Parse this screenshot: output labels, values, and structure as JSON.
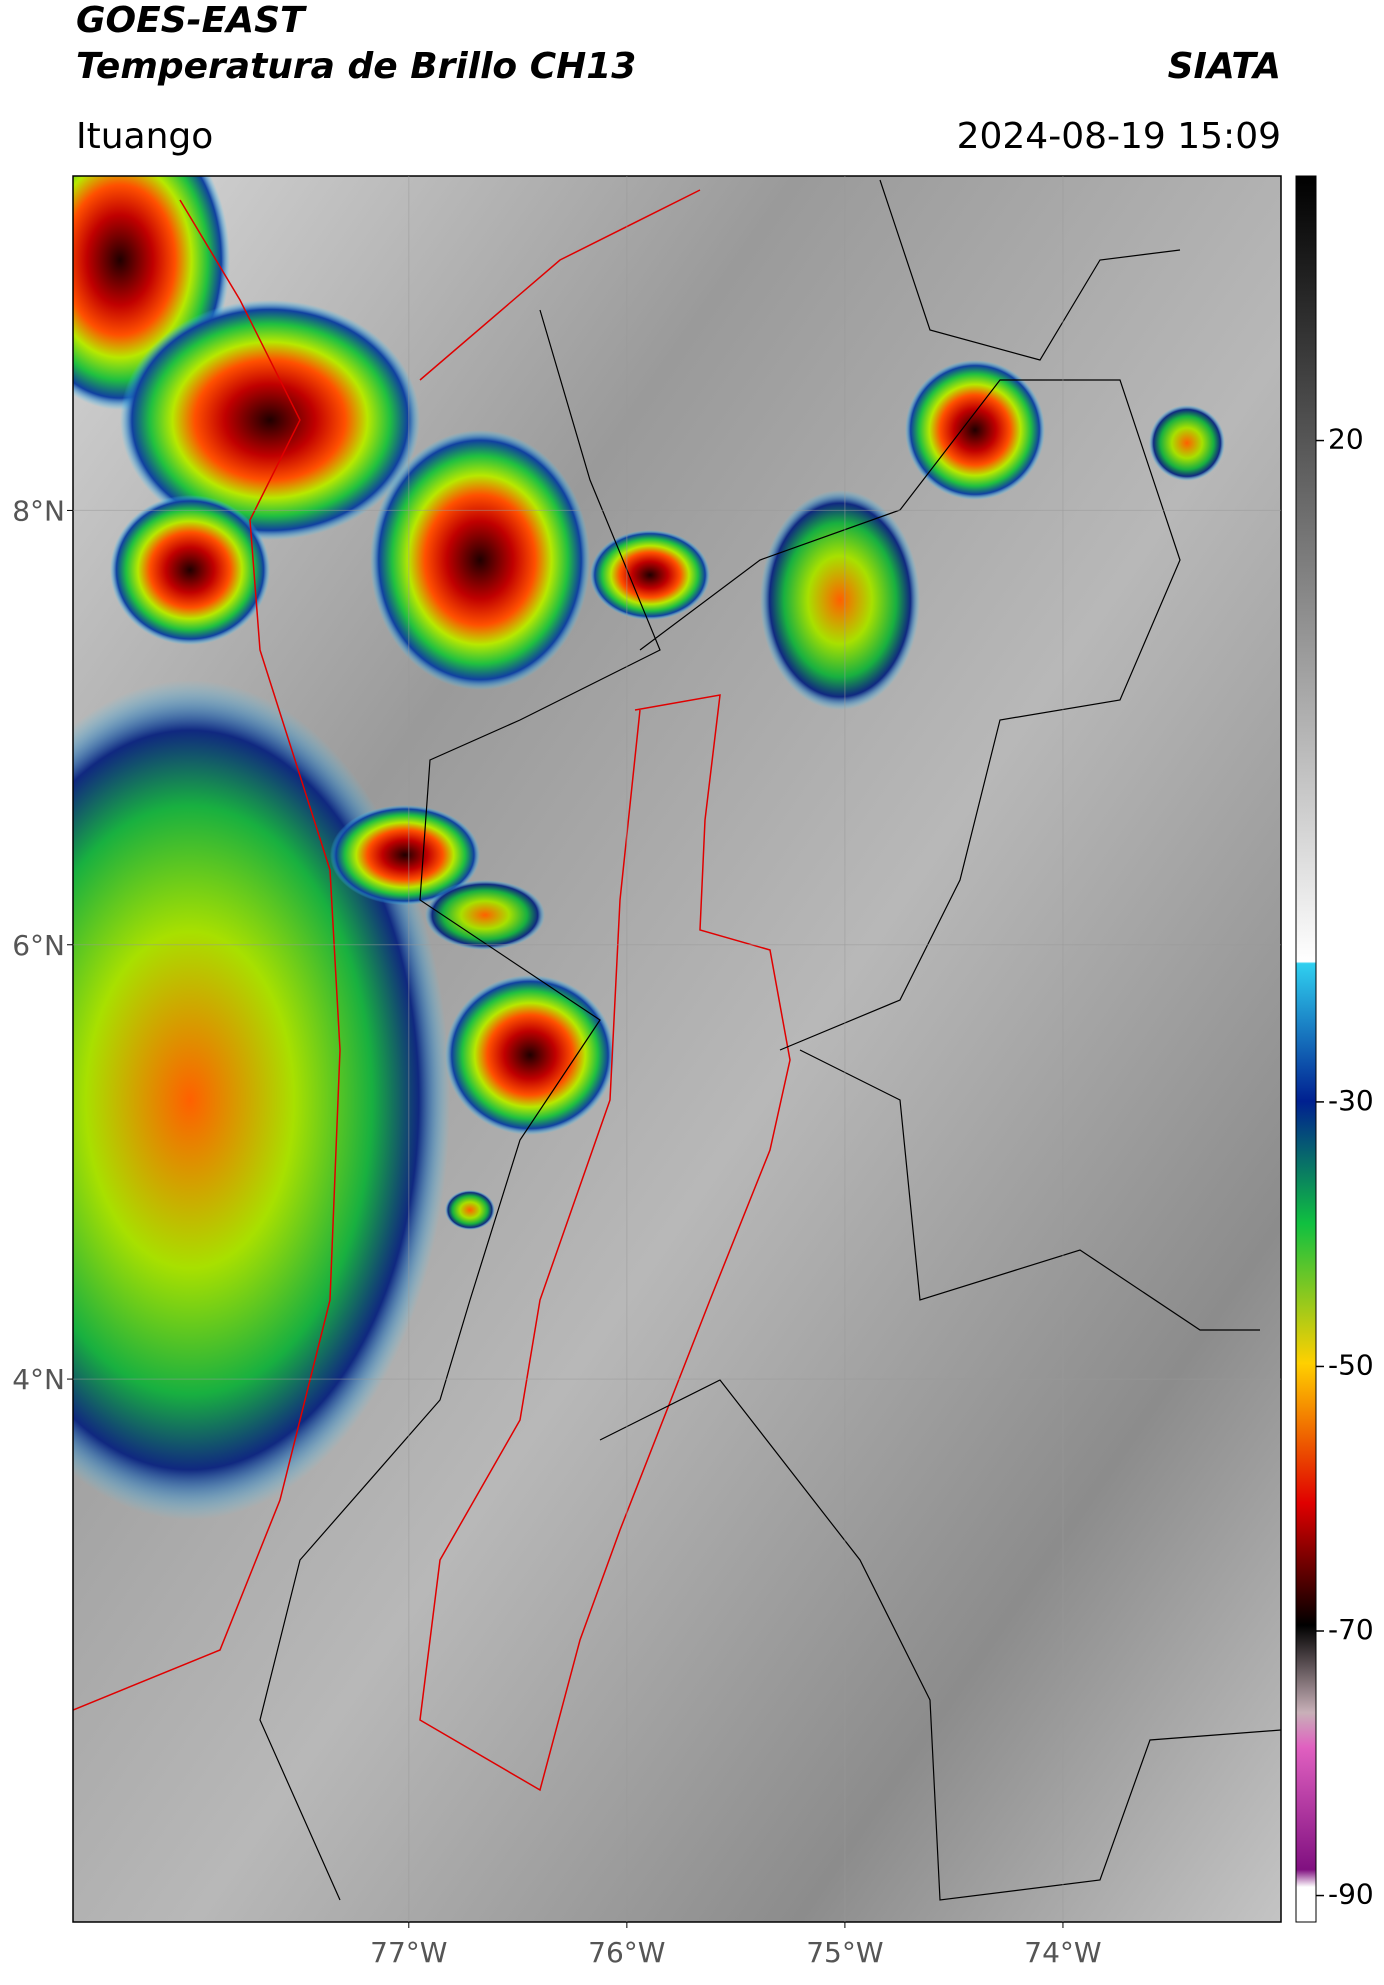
{
  "header": {
    "title": "GOES-EAST",
    "subtitle": "Temperatura de Brillo CH13",
    "source": "SIATA",
    "location": "Ituango",
    "datetime": "2024-08-19 15:09"
  },
  "map": {
    "lonlim": [
      -78.54,
      -73.0
    ],
    "latlim": [
      1.5,
      9.54
    ],
    "lonticks": [
      {
        "value": -77,
        "label": "77°W"
      },
      {
        "value": -76,
        "label": "76°W"
      },
      {
        "value": -75,
        "label": "75°W"
      },
      {
        "value": -74,
        "label": "74°W"
      }
    ],
    "latticks": [
      {
        "value": 8,
        "label": "8°N"
      },
      {
        "value": 6,
        "label": "6°N"
      },
      {
        "value": 4,
        "label": "4°N"
      }
    ],
    "grid": true
  },
  "colorbar": {
    "range": [
      -92,
      40
    ],
    "ticks": [
      20,
      -30,
      -50,
      -70,
      -90
    ]
  }
}
